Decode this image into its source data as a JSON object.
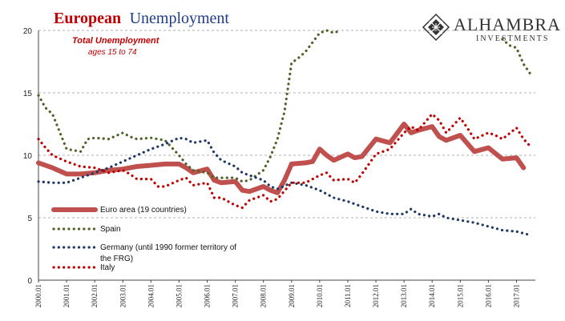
{
  "colors": {
    "euro": "#c0504d",
    "spain": "#4f6228",
    "germany": "#1f3864",
    "italy": "#c00000",
    "title_red": "#c00000",
    "title_blue": "#1f3c88",
    "grid": "#b0b0b0"
  },
  "header": {
    "title_part1": "European",
    "title_part2": "Unemployment",
    "subtitle": "Total Unemployment",
    "subtitle2": "ages 15 to 74"
  },
  "logo": {
    "name": "ALHAMBRA",
    "tagline": "INVESTMENTS",
    "icon": "diamond-lattice-icon"
  },
  "chart_data": {
    "type": "line",
    "title": "European Unemployment",
    "subtitle": "Total Unemployment, ages 15 to 74",
    "xlabel": "",
    "ylabel": "",
    "ylim": [
      0,
      20
    ],
    "yticks": [
      "0",
      "5",
      "10",
      "15",
      "20"
    ],
    "xlim": [
      2000.0,
      2017.67
    ],
    "xticks": [
      "2000.01",
      "2001.01",
      "2002.01",
      "2003.01",
      "2004.01",
      "2005.01",
      "2006.01",
      "2007.01",
      "2008.01",
      "2009.01",
      "2010.01",
      "2011.01",
      "2012.01",
      "2013.01",
      "2014.01",
      "2015.01",
      "2016.01",
      "2017.01"
    ],
    "grid": "horizontal dashed",
    "legend": [
      {
        "name": "Euro area (19 countries)",
        "style": "thick solid line"
      },
      {
        "name": "Spain",
        "style": "dotted"
      },
      {
        "name": "Germany (until 1990 former territory of the FRG)",
        "style": "dotted"
      },
      {
        "name": "Italy",
        "style": "dotted"
      }
    ],
    "series": [
      {
        "name": "Euro area (19 countries)",
        "style": "line",
        "points": [
          [
            2000.0,
            9.4
          ],
          [
            2000.5,
            9.0
          ],
          [
            2001.0,
            8.5
          ],
          [
            2001.5,
            8.5
          ],
          [
            2002.0,
            8.6
          ],
          [
            2002.5,
            8.8
          ],
          [
            2003.0,
            8.9
          ],
          [
            2003.5,
            9.1
          ],
          [
            2004.0,
            9.2
          ],
          [
            2004.5,
            9.3
          ],
          [
            2005.0,
            9.3
          ],
          [
            2005.25,
            9.0
          ],
          [
            2005.5,
            8.6
          ],
          [
            2006.0,
            8.9
          ],
          [
            2006.25,
            8.0
          ],
          [
            2006.5,
            7.8
          ],
          [
            2007.0,
            7.9
          ],
          [
            2007.25,
            7.2
          ],
          [
            2007.5,
            7.1
          ],
          [
            2008.0,
            7.5
          ],
          [
            2008.25,
            7.2
          ],
          [
            2008.5,
            7.0
          ],
          [
            2008.75,
            8.0
          ],
          [
            2009.0,
            9.3
          ],
          [
            2009.5,
            9.4
          ],
          [
            2009.75,
            9.5
          ],
          [
            2010.0,
            10.5
          ],
          [
            2010.25,
            10.0
          ],
          [
            2010.5,
            9.6
          ],
          [
            2011.0,
            10.1
          ],
          [
            2011.25,
            9.8
          ],
          [
            2011.5,
            9.9
          ],
          [
            2012.0,
            11.3
          ],
          [
            2012.5,
            11.0
          ],
          [
            2013.0,
            12.5
          ],
          [
            2013.25,
            11.8
          ],
          [
            2013.5,
            12.0
          ],
          [
            2014.0,
            12.3
          ],
          [
            2014.25,
            11.5
          ],
          [
            2014.5,
            11.2
          ],
          [
            2015.0,
            11.6
          ],
          [
            2015.5,
            10.3
          ],
          [
            2016.0,
            10.6
          ],
          [
            2016.5,
            9.7
          ],
          [
            2017.0,
            9.8
          ],
          [
            2017.25,
            9.0
          ]
        ]
      },
      {
        "name": "Spain",
        "style": "dotted",
        "points": [
          [
            2000.0,
            14.8
          ],
          [
            2000.25,
            13.8
          ],
          [
            2000.5,
            13.3
          ],
          [
            2001.0,
            10.5
          ],
          [
            2001.5,
            10.3
          ],
          [
            2001.75,
            11.3
          ],
          [
            2002.0,
            11.4
          ],
          [
            2002.5,
            11.3
          ],
          [
            2003.0,
            11.8
          ],
          [
            2003.25,
            11.5
          ],
          [
            2003.5,
            11.3
          ],
          [
            2004.0,
            11.4
          ],
          [
            2004.5,
            11.2
          ],
          [
            2005.0,
            10.0
          ],
          [
            2005.25,
            9.3
          ],
          [
            2005.5,
            8.8
          ],
          [
            2006.0,
            8.6
          ],
          [
            2006.25,
            8.2
          ],
          [
            2006.5,
            8.2
          ],
          [
            2007.0,
            8.2
          ],
          [
            2007.25,
            7.9
          ],
          [
            2007.5,
            8.0
          ],
          [
            2008.0,
            8.8
          ],
          [
            2008.25,
            9.9
          ],
          [
            2008.5,
            11.3
          ],
          [
            2008.75,
            13.5
          ],
          [
            2009.0,
            17.4
          ],
          [
            2009.25,
            17.8
          ],
          [
            2009.5,
            18.3
          ],
          [
            2010.0,
            19.8
          ],
          [
            2010.25,
            20.0
          ],
          [
            2010.5,
            19.8
          ],
          [
            2010.75,
            20.0
          ],
          [
            2016.5,
            19.3
          ],
          [
            2016.75,
            18.8
          ],
          [
            2017.0,
            18.6
          ],
          [
            2017.25,
            17.3
          ],
          [
            2017.5,
            16.5
          ]
        ]
      },
      {
        "name": "Germany (until 1990 former territory of the FRG)",
        "style": "dotted",
        "points": [
          [
            2000.0,
            7.9
          ],
          [
            2000.5,
            7.8
          ],
          [
            2001.0,
            7.8
          ],
          [
            2001.5,
            8.2
          ],
          [
            2002.0,
            8.6
          ],
          [
            2002.5,
            9.0
          ],
          [
            2003.0,
            9.5
          ],
          [
            2003.5,
            10.0
          ],
          [
            2004.0,
            10.5
          ],
          [
            2004.5,
            10.9
          ],
          [
            2005.0,
            11.4
          ],
          [
            2005.25,
            11.3
          ],
          [
            2005.5,
            11.0
          ],
          [
            2006.0,
            11.2
          ],
          [
            2006.25,
            10.2
          ],
          [
            2006.5,
            9.6
          ],
          [
            2007.0,
            9.1
          ],
          [
            2007.25,
            8.6
          ],
          [
            2007.5,
            8.4
          ],
          [
            2008.0,
            8.0
          ],
          [
            2008.25,
            7.5
          ],
          [
            2008.5,
            7.3
          ],
          [
            2009.0,
            7.8
          ],
          [
            2009.5,
            7.6
          ],
          [
            2010.0,
            7.2
          ],
          [
            2010.5,
            6.6
          ],
          [
            2011.0,
            6.3
          ],
          [
            2011.5,
            5.9
          ],
          [
            2012.0,
            5.5
          ],
          [
            2012.5,
            5.3
          ],
          [
            2013.0,
            5.3
          ],
          [
            2013.25,
            5.7
          ],
          [
            2013.5,
            5.3
          ],
          [
            2014.0,
            5.1
          ],
          [
            2014.25,
            5.3
          ],
          [
            2014.5,
            5.0
          ],
          [
            2015.0,
            4.8
          ],
          [
            2015.5,
            4.6
          ],
          [
            2016.0,
            4.3
          ],
          [
            2016.5,
            4.0
          ],
          [
            2017.0,
            3.9
          ],
          [
            2017.5,
            3.6
          ]
        ]
      },
      {
        "name": "Italy",
        "style": "dotted",
        "points": [
          [
            2000.0,
            11.3
          ],
          [
            2000.25,
            10.6
          ],
          [
            2000.5,
            10.0
          ],
          [
            2001.0,
            9.5
          ],
          [
            2001.5,
            9.1
          ],
          [
            2002.0,
            9.0
          ],
          [
            2002.5,
            8.6
          ],
          [
            2003.0,
            8.8
          ],
          [
            2003.25,
            8.5
          ],
          [
            2003.5,
            8.1
          ],
          [
            2004.0,
            8.1
          ],
          [
            2004.25,
            7.5
          ],
          [
            2004.5,
            7.5
          ],
          [
            2005.0,
            8.0
          ],
          [
            2005.25,
            8.2
          ],
          [
            2005.5,
            7.6
          ],
          [
            2006.0,
            7.8
          ],
          [
            2006.25,
            6.6
          ],
          [
            2006.5,
            6.6
          ],
          [
            2007.0,
            6.0
          ],
          [
            2007.25,
            5.8
          ],
          [
            2007.5,
            6.4
          ],
          [
            2008.0,
            6.8
          ],
          [
            2008.25,
            6.3
          ],
          [
            2008.5,
            6.5
          ],
          [
            2009.0,
            7.8
          ],
          [
            2009.5,
            7.8
          ],
          [
            2010.0,
            8.4
          ],
          [
            2010.25,
            8.6
          ],
          [
            2010.5,
            8.0
          ],
          [
            2011.0,
            8.1
          ],
          [
            2011.25,
            7.8
          ],
          [
            2011.5,
            8.5
          ],
          [
            2012.0,
            10.1
          ],
          [
            2012.5,
            10.5
          ],
          [
            2013.0,
            11.8
          ],
          [
            2013.25,
            12.3
          ],
          [
            2013.5,
            12.0
          ],
          [
            2014.0,
            13.3
          ],
          [
            2014.25,
            12.8
          ],
          [
            2014.5,
            11.8
          ],
          [
            2015.0,
            13.0
          ],
          [
            2015.25,
            12.2
          ],
          [
            2015.5,
            11.3
          ],
          [
            2016.0,
            11.8
          ],
          [
            2016.25,
            11.6
          ],
          [
            2016.5,
            11.3
          ],
          [
            2017.0,
            12.2
          ],
          [
            2017.25,
            11.3
          ],
          [
            2017.5,
            10.7
          ]
        ]
      }
    ]
  }
}
